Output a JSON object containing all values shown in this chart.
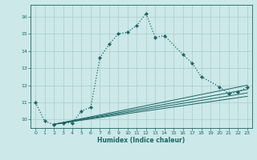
{
  "xlabel": "Humidex (Indice chaleur)",
  "bg_color": "#cce8e8",
  "grid_color": "#aacccc",
  "line_color": "#1a6666",
  "xlim": [
    -0.5,
    23.5
  ],
  "ylim": [
    9.5,
    16.7
  ],
  "yticks": [
    10,
    11,
    12,
    13,
    14,
    15,
    16
  ],
  "xticks": [
    0,
    1,
    2,
    3,
    4,
    5,
    6,
    7,
    8,
    9,
    10,
    11,
    12,
    13,
    14,
    15,
    16,
    17,
    18,
    19,
    20,
    21,
    22,
    23
  ],
  "main_x": [
    0,
    1,
    2,
    3,
    4,
    5,
    6,
    7,
    8,
    9,
    10,
    11,
    12,
    13,
    14,
    16,
    17,
    18,
    20,
    21,
    22,
    23
  ],
  "main_y": [
    11.0,
    9.9,
    9.7,
    9.8,
    9.8,
    10.5,
    10.7,
    13.6,
    14.4,
    15.0,
    15.1,
    15.5,
    16.2,
    14.8,
    14.9,
    13.8,
    13.3,
    12.5,
    11.9,
    11.5,
    11.6,
    11.9
  ],
  "line1_x": [
    2,
    23
  ],
  "line1_y": [
    9.72,
    12.0
  ],
  "line2_x": [
    2,
    23
  ],
  "line2_y": [
    9.72,
    11.75
  ],
  "line3_x": [
    2,
    23
  ],
  "line3_y": [
    9.72,
    11.55
  ],
  "line4_x": [
    2,
    23
  ],
  "line4_y": [
    9.72,
    11.35
  ]
}
